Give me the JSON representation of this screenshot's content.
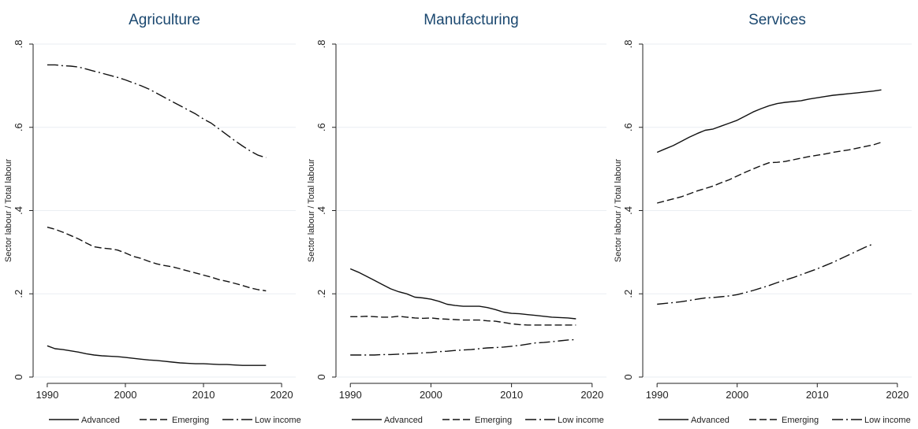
{
  "chart_data": [
    {
      "type": "line",
      "title": "Agriculture",
      "ylabel": "Sector labour / Total labour",
      "xlabel": "",
      "xlim": [
        1989,
        2021
      ],
      "ylim": [
        0,
        0.8
      ],
      "xticks": [
        1990,
        2000,
        2010,
        2020
      ],
      "yticks": [
        0,
        0.2,
        0.4,
        0.6,
        0.8
      ],
      "yticklabels": [
        "0",
        ".2",
        ".4",
        ".6",
        ".8"
      ],
      "grid": "horizontal",
      "legend": [
        "Advanced",
        "Emerging",
        "Low income"
      ],
      "series": [
        {
          "name": "Advanced",
          "style": "solid",
          "x": [
            1990,
            1991,
            1992,
            1993,
            1994,
            1995,
            1996,
            1997,
            1998,
            1999,
            2000,
            2001,
            2002,
            2003,
            2004,
            2005,
            2006,
            2007,
            2008,
            2009,
            2010,
            2011,
            2012,
            2013,
            2014,
            2015,
            2016,
            2017,
            2018
          ],
          "values": [
            0.075,
            0.068,
            0.066,
            0.063,
            0.06,
            0.056,
            0.053,
            0.051,
            0.05,
            0.049,
            0.047,
            0.045,
            0.043,
            0.041,
            0.04,
            0.038,
            0.036,
            0.034,
            0.033,
            0.032,
            0.032,
            0.031,
            0.03,
            0.03,
            0.029,
            0.028,
            0.028,
            0.028,
            0.028
          ]
        },
        {
          "name": "Emerging",
          "style": "dash",
          "x": [
            1990,
            1991,
            1992,
            1993,
            1994,
            1995,
            1996,
            1997,
            1998,
            1999,
            2000,
            2001,
            2002,
            2003,
            2004,
            2005,
            2006,
            2007,
            2008,
            2009,
            2010,
            2011,
            2012,
            2013,
            2014,
            2015,
            2016,
            2017,
            2018
          ],
          "values": [
            0.36,
            0.355,
            0.348,
            0.34,
            0.332,
            0.322,
            0.313,
            0.31,
            0.308,
            0.305,
            0.298,
            0.29,
            0.285,
            0.278,
            0.272,
            0.268,
            0.265,
            0.26,
            0.255,
            0.25,
            0.245,
            0.24,
            0.234,
            0.23,
            0.225,
            0.22,
            0.214,
            0.21,
            0.207
          ]
        },
        {
          "name": "Low income",
          "style": "dashdot",
          "x": [
            1990,
            1991,
            1992,
            1993,
            1994,
            1995,
            1996,
            1997,
            1998,
            1999,
            2000,
            2001,
            2002,
            2003,
            2004,
            2005,
            2006,
            2007,
            2008,
            2009,
            2010,
            2011,
            2012,
            2013,
            2014,
            2015,
            2016,
            2017,
            2018
          ],
          "values": [
            0.75,
            0.75,
            0.748,
            0.747,
            0.745,
            0.74,
            0.735,
            0.73,
            0.725,
            0.72,
            0.714,
            0.707,
            0.7,
            0.692,
            0.682,
            0.672,
            0.662,
            0.652,
            0.642,
            0.632,
            0.62,
            0.61,
            0.596,
            0.582,
            0.568,
            0.555,
            0.543,
            0.533,
            0.527
          ]
        }
      ]
    },
    {
      "type": "line",
      "title": "Manufacturing",
      "ylabel": "Sector labour / Total labour",
      "xlabel": "",
      "xlim": [
        1989,
        2021
      ],
      "ylim": [
        0,
        0.8
      ],
      "xticks": [
        1990,
        2000,
        2010,
        2020
      ],
      "yticks": [
        0,
        0.2,
        0.4,
        0.6,
        0.8
      ],
      "yticklabels": [
        "0",
        ".2",
        ".4",
        ".6",
        ".8"
      ],
      "grid": "horizontal",
      "legend": [
        "Advanced",
        "Emerging",
        "Low income"
      ],
      "series": [
        {
          "name": "Advanced",
          "style": "solid",
          "x": [
            1990,
            1991,
            1992,
            1993,
            1994,
            1995,
            1996,
            1997,
            1998,
            1999,
            2000,
            2001,
            2002,
            2003,
            2004,
            2005,
            2006,
            2007,
            2008,
            2009,
            2010,
            2011,
            2012,
            2013,
            2014,
            2015,
            2016,
            2017,
            2018
          ],
          "values": [
            0.26,
            0.252,
            0.242,
            0.232,
            0.222,
            0.212,
            0.205,
            0.2,
            0.192,
            0.19,
            0.187,
            0.182,
            0.175,
            0.172,
            0.17,
            0.17,
            0.17,
            0.167,
            0.162,
            0.156,
            0.153,
            0.152,
            0.15,
            0.148,
            0.146,
            0.144,
            0.143,
            0.142,
            0.14
          ]
        },
        {
          "name": "Emerging",
          "style": "dash",
          "x": [
            1990,
            1991,
            1992,
            1993,
            1994,
            1995,
            1996,
            1997,
            1998,
            1999,
            2000,
            2001,
            2002,
            2003,
            2004,
            2005,
            2006,
            2007,
            2008,
            2009,
            2010,
            2011,
            2012,
            2013,
            2014,
            2015,
            2016,
            2017,
            2018
          ],
          "values": [
            0.145,
            0.145,
            0.146,
            0.145,
            0.144,
            0.144,
            0.146,
            0.144,
            0.142,
            0.141,
            0.142,
            0.14,
            0.139,
            0.138,
            0.137,
            0.137,
            0.137,
            0.135,
            0.134,
            0.131,
            0.128,
            0.126,
            0.125,
            0.125,
            0.125,
            0.125,
            0.125,
            0.125,
            0.125
          ]
        },
        {
          "name": "Low income",
          "style": "dashdot",
          "x": [
            1990,
            1991,
            1992,
            1993,
            1994,
            1995,
            1996,
            1997,
            1998,
            1999,
            2000,
            2001,
            2002,
            2003,
            2004,
            2005,
            2006,
            2007,
            2008,
            2009,
            2010,
            2011,
            2012,
            2013,
            2014,
            2015,
            2016,
            2017,
            2018
          ],
          "values": [
            0.053,
            0.053,
            0.053,
            0.053,
            0.054,
            0.054,
            0.055,
            0.056,
            0.057,
            0.058,
            0.059,
            0.061,
            0.062,
            0.064,
            0.065,
            0.066,
            0.068,
            0.07,
            0.071,
            0.072,
            0.074,
            0.076,
            0.079,
            0.082,
            0.083,
            0.085,
            0.087,
            0.089,
            0.09
          ]
        }
      ]
    },
    {
      "type": "line",
      "title": "Services",
      "ylabel": "Sector labour / Total labour",
      "xlabel": "",
      "xlim": [
        1989,
        2021
      ],
      "ylim": [
        0,
        0.8
      ],
      "xticks": [
        1990,
        2000,
        2010,
        2020
      ],
      "yticks": [
        0,
        0.2,
        0.4,
        0.6,
        0.8
      ],
      "yticklabels": [
        "0",
        ".2",
        ".4",
        ".6",
        ".8"
      ],
      "grid": "horizontal",
      "legend": [
        "Advanced",
        "Emerging",
        "Low income"
      ],
      "series": [
        {
          "name": "Advanced",
          "style": "solid",
          "x": [
            1990,
            1991,
            1992,
            1993,
            1994,
            1995,
            1996,
            1997,
            1998,
            1999,
            2000,
            2001,
            2002,
            2003,
            2004,
            2005,
            2006,
            2007,
            2008,
            2009,
            2010,
            2011,
            2012,
            2013,
            2014,
            2015,
            2016,
            2017,
            2018
          ],
          "values": [
            0.54,
            0.548,
            0.556,
            0.566,
            0.576,
            0.585,
            0.593,
            0.596,
            0.603,
            0.61,
            0.617,
            0.627,
            0.637,
            0.645,
            0.652,
            0.657,
            0.66,
            0.662,
            0.664,
            0.668,
            0.671,
            0.674,
            0.677,
            0.679,
            0.681,
            0.683,
            0.685,
            0.687,
            0.69
          ]
        },
        {
          "name": "Emerging",
          "style": "dash",
          "x": [
            1990,
            1991,
            1992,
            1993,
            1994,
            1995,
            1996,
            1997,
            1998,
            1999,
            2000,
            2001,
            2002,
            2003,
            2004,
            2005,
            2006,
            2007,
            2008,
            2009,
            2010,
            2011,
            2012,
            2013,
            2014,
            2015,
            2016,
            2017,
            2018
          ],
          "values": [
            0.418,
            0.423,
            0.428,
            0.433,
            0.44,
            0.447,
            0.453,
            0.459,
            0.467,
            0.474,
            0.483,
            0.492,
            0.5,
            0.508,
            0.515,
            0.516,
            0.518,
            0.522,
            0.526,
            0.53,
            0.533,
            0.536,
            0.54,
            0.543,
            0.546,
            0.55,
            0.554,
            0.558,
            0.564
          ]
        },
        {
          "name": "Low income",
          "style": "dashdot",
          "x": [
            1990,
            1991,
            1992,
            1993,
            1994,
            1995,
            1996,
            1997,
            1998,
            1999,
            2000,
            2001,
            2002,
            2003,
            2004,
            2005,
            2006,
            2007,
            2008,
            2009,
            2010,
            2011,
            2012,
            2013,
            2014,
            2015,
            2016,
            2017
          ],
          "values": [
            0.175,
            0.177,
            0.179,
            0.181,
            0.184,
            0.187,
            0.19,
            0.191,
            0.193,
            0.195,
            0.198,
            0.203,
            0.208,
            0.214,
            0.22,
            0.227,
            0.233,
            0.239,
            0.246,
            0.253,
            0.26,
            0.268,
            0.276,
            0.285,
            0.294,
            0.303,
            0.312,
            0.32
          ]
        }
      ]
    }
  ]
}
